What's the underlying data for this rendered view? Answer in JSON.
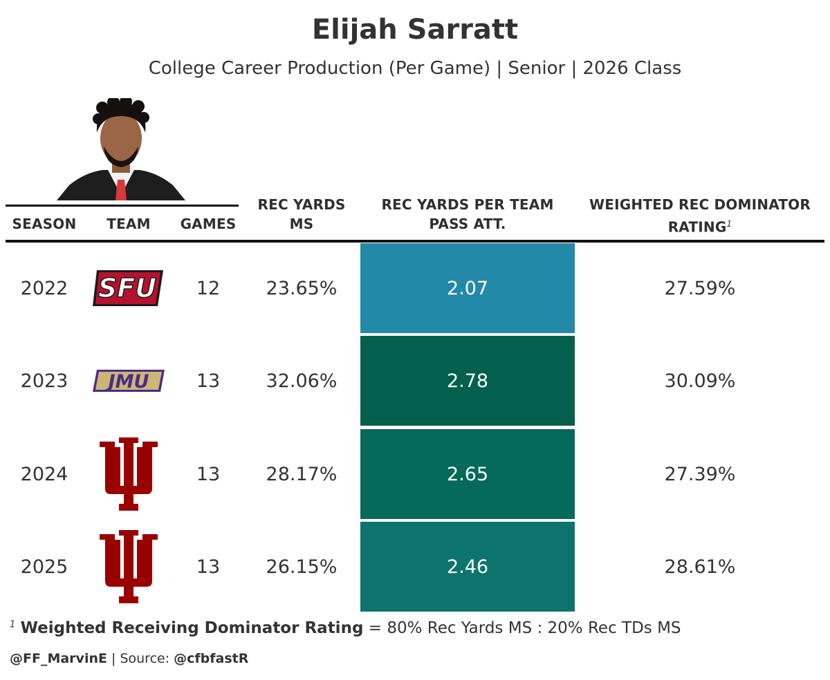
{
  "header": {
    "title": "Elijah Sarratt",
    "subtitle": "College Career Production (Per Game) | Senior | 2026 Class"
  },
  "chart_data": {
    "type": "table",
    "columns": {
      "season": "SEASON",
      "team": "TEAM",
      "games": "GAMES",
      "rec_yards_ms_1": "REC YARDS",
      "rec_yards_ms_2": "MS",
      "ypa_1": "REC YARDS PER TEAM",
      "ypa_2": "PASS ATT.",
      "wdr_1": "WEIGHTED REC DOMINATOR",
      "wdr_2": "RATING",
      "wdr_footnote_mark": "1"
    },
    "rows": [
      {
        "season": "2022",
        "team": "SFU",
        "games": "12",
        "rec_yards_ms": "23.65%",
        "rec_yards_per_pass_att": 2.07,
        "ypa_label": "2.07",
        "weighted_dominator": "27.59%"
      },
      {
        "season": "2023",
        "team": "JMU",
        "games": "13",
        "rec_yards_ms": "32.06%",
        "rec_yards_per_pass_att": 2.78,
        "ypa_label": "2.78",
        "weighted_dominator": "30.09%"
      },
      {
        "season": "2024",
        "team": "Indiana",
        "games": "13",
        "rec_yards_ms": "28.17%",
        "rec_yards_per_pass_att": 2.65,
        "ypa_label": "2.65",
        "weighted_dominator": "27.39%"
      },
      {
        "season": "2025",
        "team": "Indiana",
        "games": "13",
        "rec_yards_ms": "26.15%",
        "rec_yards_per_pass_att": 2.46,
        "ypa_label": "2.46",
        "weighted_dominator": "28.61%"
      }
    ],
    "heatmap_colors": {
      "2.07": "#2389a8",
      "2.46": "#0c746c",
      "2.65": "#056a59",
      "2.78": "#03604d"
    }
  },
  "footnote": {
    "mark": "1",
    "term": "Weighted Receiving Dominator Rating",
    "definition": " = 80% Rec Yards MS : 20% Rec TDs MS"
  },
  "credit": {
    "author": "@FF_MarvinE",
    "separator": " | Source: ",
    "source": "@cfbfastR"
  },
  "logos": {
    "sfu_text": "SFU",
    "jmu_text": "JMU"
  }
}
